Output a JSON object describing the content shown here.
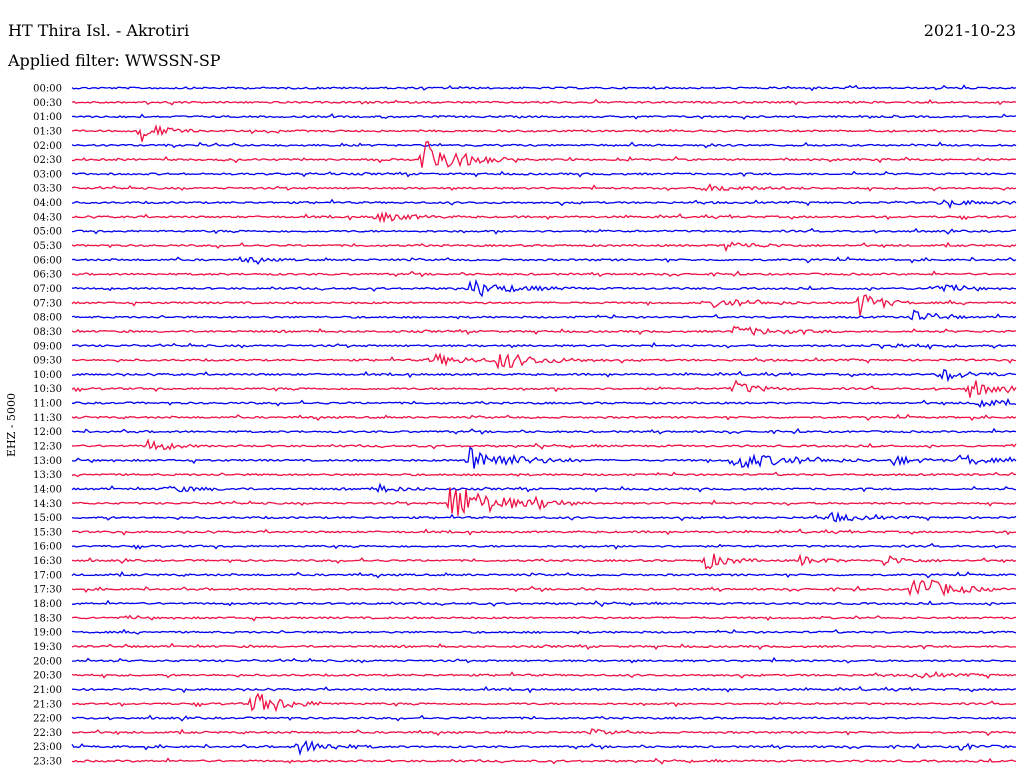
{
  "header": {
    "station": "HT Thira Isl. - Akrotiri",
    "date": "2021-10-23",
    "filter": "Applied filter: WWSSN-SP"
  },
  "chart_data": {
    "type": "line",
    "title": "HT Thira Isl. - Akrotiri",
    "ylabel": "EHZ - 5000",
    "trace_colors": [
      "#0000ee",
      "#ee1144"
    ],
    "rows": [
      {
        "label": "00:00",
        "events": []
      },
      {
        "label": "00:30",
        "events": []
      },
      {
        "label": "01:00",
        "events": []
      },
      {
        "label": "01:30",
        "events": [
          {
            "t": 0.07,
            "amp": 2.2,
            "dur": 0.02
          }
        ]
      },
      {
        "label": "02:00",
        "events": []
      },
      {
        "label": "02:30",
        "events": [
          {
            "t": 0.37,
            "amp": 4.5,
            "dur": 0.03
          }
        ]
      },
      {
        "label": "03:00",
        "events": []
      },
      {
        "label": "03:30",
        "events": [
          {
            "t": 0.67,
            "amp": 0.6,
            "dur": 0.04
          }
        ]
      },
      {
        "label": "04:00",
        "events": [
          {
            "t": 0.92,
            "amp": 0.5,
            "dur": 0.04
          }
        ]
      },
      {
        "label": "04:30",
        "events": [
          {
            "t": 0.32,
            "amp": 1.0,
            "dur": 0.03
          }
        ]
      },
      {
        "label": "05:00",
        "events": []
      },
      {
        "label": "05:30",
        "events": [
          {
            "t": 0.69,
            "amp": 0.8,
            "dur": 0.03
          }
        ]
      },
      {
        "label": "06:00",
        "events": [
          {
            "t": 0.18,
            "amp": 0.6,
            "dur": 0.02
          }
        ]
      },
      {
        "label": "06:30",
        "events": []
      },
      {
        "label": "07:00",
        "events": [
          {
            "t": 0.42,
            "amp": 1.3,
            "dur": 0.04
          },
          {
            "t": 0.91,
            "amp": 1.0,
            "dur": 0.02
          }
        ]
      },
      {
        "label": "07:30",
        "events": [
          {
            "t": 0.83,
            "amp": 2.8,
            "dur": 0.02
          },
          {
            "t": 0.68,
            "amp": 0.7,
            "dur": 0.04
          }
        ]
      },
      {
        "label": "08:00",
        "events": [
          {
            "t": 0.89,
            "amp": 1.3,
            "dur": 0.02
          }
        ]
      },
      {
        "label": "08:30",
        "events": [
          {
            "t": 0.7,
            "amp": 0.9,
            "dur": 0.04
          }
        ]
      },
      {
        "label": "09:00",
        "events": [
          {
            "t": 0.85,
            "amp": 0.5,
            "dur": 0.04
          }
        ]
      },
      {
        "label": "09:30",
        "events": [
          {
            "t": 0.38,
            "amp": 1.2,
            "dur": 0.03
          },
          {
            "t": 0.45,
            "amp": 1.5,
            "dur": 0.04
          }
        ]
      },
      {
        "label": "10:00",
        "events": [
          {
            "t": 0.92,
            "amp": 1.0,
            "dur": 0.03
          }
        ]
      },
      {
        "label": "10:30",
        "events": [
          {
            "t": 0.7,
            "amp": 1.5,
            "dur": 0.02
          },
          {
            "t": 0.95,
            "amp": 1.8,
            "dur": 0.02
          }
        ]
      },
      {
        "label": "11:00",
        "events": [
          {
            "t": 0.96,
            "amp": 0.9,
            "dur": 0.02
          }
        ]
      },
      {
        "label": "11:30",
        "events": []
      },
      {
        "label": "12:00",
        "events": []
      },
      {
        "label": "12:30",
        "events": [
          {
            "t": 0.08,
            "amp": 1.2,
            "dur": 0.02
          }
        ]
      },
      {
        "label": "13:00",
        "events": [
          {
            "t": 0.42,
            "amp": 2.5,
            "dur": 0.04
          },
          {
            "t": 0.7,
            "amp": 1.6,
            "dur": 0.05
          },
          {
            "t": 0.87,
            "amp": 1.0,
            "dur": 0.02
          },
          {
            "t": 0.94,
            "amp": 1.3,
            "dur": 0.02
          }
        ]
      },
      {
        "label": "13:30",
        "events": []
      },
      {
        "label": "14:00",
        "events": [
          {
            "t": 0.1,
            "amp": 0.6,
            "dur": 0.03
          },
          {
            "t": 0.32,
            "amp": 0.6,
            "dur": 0.03
          }
        ]
      },
      {
        "label": "14:30",
        "events": [
          {
            "t": 0.4,
            "amp": 4.0,
            "dur": 0.04
          },
          {
            "t": 0.49,
            "amp": 0.8,
            "dur": 0.02
          }
        ]
      },
      {
        "label": "15:00",
        "events": [
          {
            "t": 0.8,
            "amp": 0.9,
            "dur": 0.03
          }
        ]
      },
      {
        "label": "15:30",
        "events": []
      },
      {
        "label": "16:00",
        "events": []
      },
      {
        "label": "16:30",
        "events": [
          {
            "t": 0.67,
            "amp": 1.8,
            "dur": 0.02
          },
          {
            "t": 0.77,
            "amp": 0.9,
            "dur": 0.02
          },
          {
            "t": 0.86,
            "amp": 1.0,
            "dur": 0.02
          }
        ]
      },
      {
        "label": "17:00",
        "events": []
      },
      {
        "label": "17:30",
        "events": [
          {
            "t": 0.89,
            "amp": 3.0,
            "dur": 0.03
          }
        ]
      },
      {
        "label": "18:00",
        "events": []
      },
      {
        "label": "18:30",
        "events": []
      },
      {
        "label": "19:00",
        "events": []
      },
      {
        "label": "19:30",
        "events": []
      },
      {
        "label": "20:00",
        "events": []
      },
      {
        "label": "20:30",
        "events": [
          {
            "t": 0.89,
            "amp": 0.5,
            "dur": 0.03
          }
        ]
      },
      {
        "label": "21:00",
        "events": []
      },
      {
        "label": "21:30",
        "events": [
          {
            "t": 0.19,
            "amp": 2.3,
            "dur": 0.03
          }
        ]
      },
      {
        "label": "22:00",
        "events": []
      },
      {
        "label": "22:30",
        "events": [
          {
            "t": 0.55,
            "amp": 0.5,
            "dur": 0.02
          }
        ]
      },
      {
        "label": "23:00",
        "events": [
          {
            "t": 0.24,
            "amp": 1.3,
            "dur": 0.03
          },
          {
            "t": 0.94,
            "amp": 0.6,
            "dur": 0.02
          }
        ]
      },
      {
        "label": "23:30",
        "events": []
      }
    ]
  }
}
